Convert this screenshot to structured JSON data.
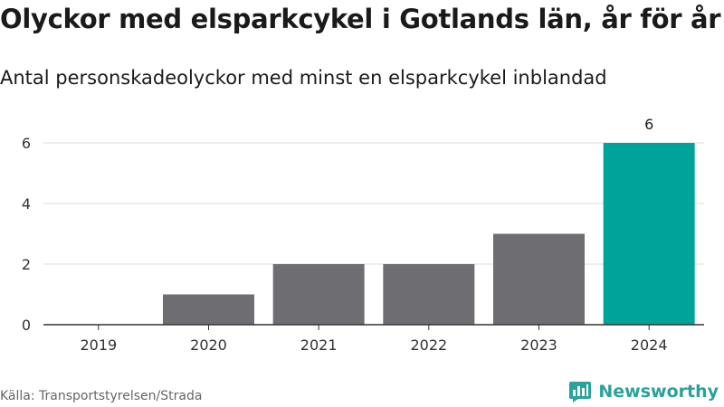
{
  "title": "Olyckor med elsparkcykel i Gotlands län, år för år",
  "subtitle": "Antal personskadeolyckor med minst en elsparkcykel inblandad",
  "source": "Källa: Transportstyrelsen/Strada",
  "brand": {
    "name": "Newsworthy",
    "icon": "newsworthy-logo-icon"
  },
  "colors": {
    "bar_default": "#6e6e72",
    "bar_highlight": "#00a39a",
    "grid": "#dcdcdc",
    "axis": "#333333",
    "brand": "#2aa29a"
  },
  "chart_data": {
    "type": "bar",
    "title": "Olyckor med elsparkcykel i Gotlands län, år för år",
    "subtitle": "Antal personskadeolyckor med minst en elsparkcykel inblandad",
    "xlabel": "",
    "ylabel": "",
    "categories": [
      "2019",
      "2020",
      "2021",
      "2022",
      "2023",
      "2024"
    ],
    "values": [
      0,
      1,
      2,
      2,
      3,
      6
    ],
    "highlight_index": 5,
    "data_labels": [
      "",
      "",
      "",
      "",
      "",
      "6"
    ],
    "ylim": [
      0,
      6
    ],
    "yticks": [
      0,
      2,
      4,
      6
    ],
    "grid": true,
    "legend": "none"
  }
}
